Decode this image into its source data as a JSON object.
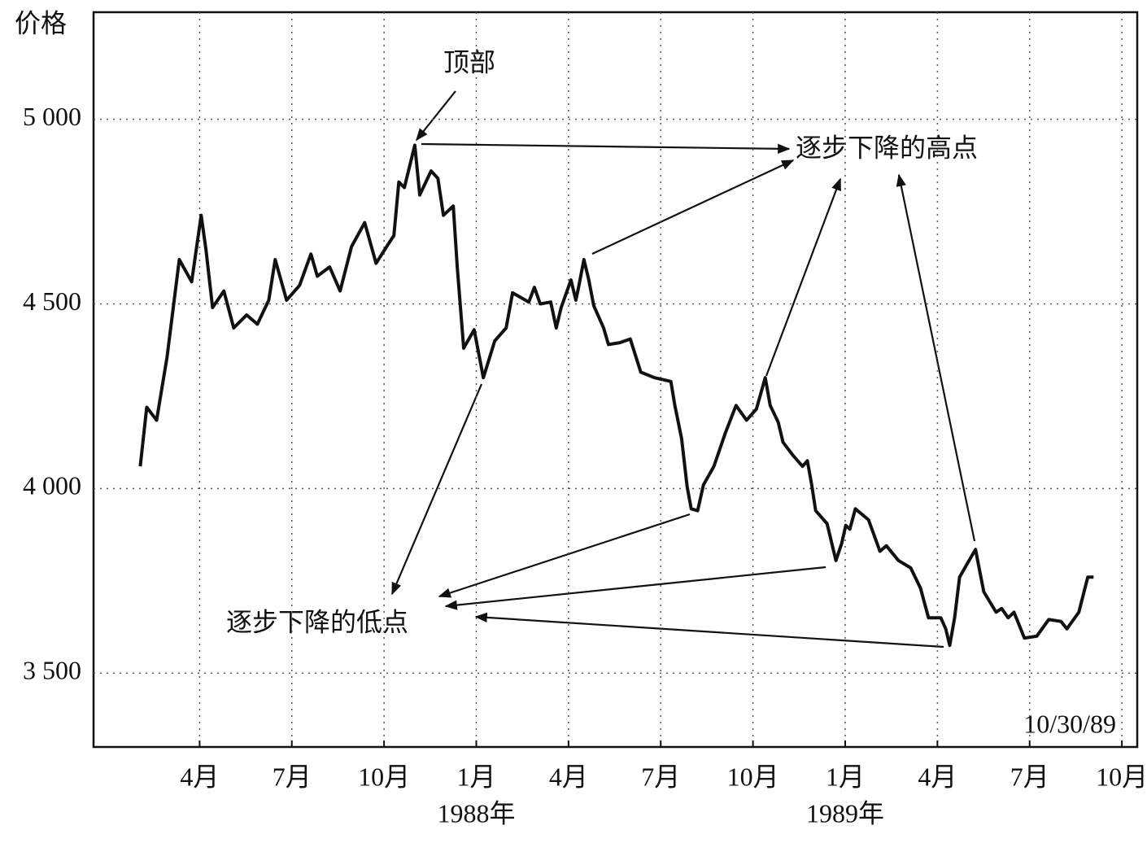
{
  "chart_data": {
    "type": "line",
    "y_label": "价格",
    "color": "#111111",
    "grid": true,
    "xlim": [
      0.55,
      34.5
    ],
    "xticks": [
      {
        "value": 4,
        "label": "4月"
      },
      {
        "value": 7,
        "label": "7月"
      },
      {
        "value": 10,
        "label": "10月"
      },
      {
        "value": 13,
        "label": "1月"
      },
      {
        "value": 16,
        "label": "4月"
      },
      {
        "value": 19,
        "label": "7月"
      },
      {
        "value": 22,
        "label": "10月"
      },
      {
        "value": 25,
        "label": "1月"
      },
      {
        "value": 28,
        "label": "4月"
      },
      {
        "value": 31,
        "label": "7月"
      },
      {
        "value": 34,
        "label": "10月"
      }
    ],
    "x_group_labels": [
      {
        "value": 13,
        "label": "1988年"
      },
      {
        "value": 25,
        "label": "1989年"
      }
    ],
    "ylim": [
      3300,
      5290
    ],
    "yticks": [
      {
        "value": 3500,
        "label": "3 500"
      },
      {
        "value": 4000,
        "label": "4 000"
      },
      {
        "value": 4500,
        "label": "4 500"
      },
      {
        "value": 5000,
        "label": "5 000"
      }
    ],
    "annotations": [
      "顶部",
      "逐步下降的高点",
      "逐步下降的低点",
      "10/30/89"
    ],
    "x": [
      2.07,
      2.28,
      2.6,
      2.94,
      3.34,
      3.74,
      4.05,
      4.21,
      4.42,
      4.79,
      5.11,
      5.53,
      5.88,
      6.25,
      6.46,
      6.83,
      7.25,
      7.62,
      7.83,
      8.23,
      8.57,
      8.94,
      9.37,
      9.74,
      10.16,
      10.32,
      10.48,
      10.66,
      11.0,
      11.16,
      11.53,
      11.75,
      11.93,
      12.25,
      12.38,
      12.59,
      12.93,
      13.23,
      13.6,
      13.97,
      14.18,
      14.71,
      14.89,
      15.08,
      15.42,
      15.6,
      15.76,
      16.08,
      16.24,
      16.34,
      16.5,
      16.66,
      16.82,
      17.14,
      17.3,
      17.67,
      18.01,
      18.35,
      18.8,
      19.33,
      19.46,
      19.68,
      19.86,
      19.99,
      20.2,
      20.39,
      20.73,
      21.1,
      21.45,
      21.79,
      22.11,
      22.4,
      22.56,
      22.82,
      22.98,
      23.3,
      23.61,
      23.77,
      23.91,
      24.04,
      24.41,
      24.7,
      24.88,
      25.02,
      25.15,
      25.33,
      25.76,
      26.13,
      26.34,
      26.73,
      27.13,
      27.45,
      27.71,
      28.11,
      28.27,
      28.4,
      28.56,
      28.72,
      29.03,
      29.24,
      29.38,
      29.51,
      29.91,
      30.09,
      30.3,
      30.49,
      30.83,
      31.23,
      31.62,
      32.02,
      32.21,
      32.6,
      32.89,
      33.08
    ],
    "values": [
      4060,
      4220,
      4185,
      4355,
      4620,
      4560,
      4740,
      4645,
      4490,
      4535,
      4435,
      4470,
      4445,
      4510,
      4620,
      4510,
      4550,
      4635,
      4575,
      4600,
      4535,
      4655,
      4720,
      4610,
      4665,
      4685,
      4830,
      4815,
      4930,
      4795,
      4860,
      4840,
      4740,
      4765,
      4600,
      4380,
      4430,
      4300,
      4400,
      4435,
      4530,
      4505,
      4545,
      4500,
      4505,
      4435,
      4490,
      4565,
      4510,
      4550,
      4620,
      4565,
      4495,
      4435,
      4390,
      4395,
      4405,
      4315,
      4300,
      4290,
      4225,
      4135,
      4005,
      3945,
      3940,
      4010,
      4060,
      4150,
      4225,
      4185,
      4215,
      4300,
      4225,
      4180,
      4125,
      4090,
      4060,
      4075,
      4010,
      3940,
      3905,
      3805,
      3850,
      3900,
      3890,
      3945,
      3915,
      3830,
      3845,
      3805,
      3785,
      3730,
      3650,
      3650,
      3620,
      3575,
      3650,
      3760,
      3805,
      3835,
      3775,
      3720,
      3665,
      3675,
      3650,
      3665,
      3595,
      3600,
      3645,
      3640,
      3620,
      3665,
      3760,
      3760
    ]
  }
}
